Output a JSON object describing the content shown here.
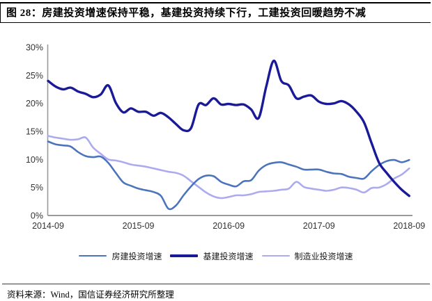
{
  "header": {
    "title": "图 28：房建投资增速保持平稳，基建投资持续下行，工建投资回暖趋势不减"
  },
  "footer": {
    "source": "资料来源：Wind，国信证券经济研究所整理"
  },
  "chart_data": {
    "type": "line",
    "title": "图 28：房建投资增速保持平稳，基建投资持续下行，工建投资回暖趋势不减",
    "xlabel": "",
    "ylabel": "",
    "ylim": [
      0,
      30
    ],
    "grid": false,
    "legend_position": "bottom",
    "axis_color": "#9a9a9a",
    "tick_text_color": "#333333",
    "x_start_label": "2014-09",
    "x_end_label": "2018-09",
    "points_per_series": 49,
    "x_ticks": [
      "2014-09",
      "2015-09",
      "2016-09",
      "2017-09",
      "2018-09"
    ],
    "x_tick_indices": [
      0,
      12,
      24,
      36,
      48
    ],
    "y_ticks": [
      "0%",
      "5%",
      "10%",
      "15%",
      "20%",
      "25%",
      "30%"
    ],
    "y_tick_values": [
      0,
      5,
      10,
      15,
      20,
      25,
      30
    ],
    "draw_order": [
      2,
      0,
      1
    ],
    "series": [
      {
        "name": "房建投资增速",
        "color": "#4C74BC",
        "width": 2.6,
        "values": [
          13.2,
          12.7,
          12.5,
          12.3,
          11.3,
          10.6,
          10.4,
          10.5,
          9.4,
          7.6,
          5.9,
          5.3,
          4.8,
          4.5,
          4.2,
          3.5,
          1.2,
          1.8,
          3.6,
          5.2,
          6.5,
          7.1,
          7.0,
          6.0,
          5.5,
          5.2,
          6.1,
          6.3,
          8.0,
          9.0,
          9.4,
          9.5,
          9.1,
          8.7,
          8.2,
          8.2,
          8.2,
          7.8,
          7.5,
          7.4,
          6.9,
          6.7,
          6.6,
          7.9,
          9.0,
          9.7,
          9.9,
          9.5,
          9.9
        ]
      },
      {
        "name": "基建投资增速",
        "color": "#1A1A99",
        "width": 3.4,
        "values": [
          24.0,
          23.0,
          22.5,
          22.8,
          22.1,
          21.7,
          21.1,
          21.6,
          23.2,
          20.1,
          18.4,
          19.1,
          18.5,
          18.5,
          17.8,
          18.3,
          17.5,
          16.3,
          15.2,
          15.6,
          19.8,
          19.7,
          20.9,
          19.8,
          19.9,
          19.7,
          19.8,
          18.9,
          17.4,
          23.0,
          27.6,
          24.0,
          23.2,
          20.9,
          21.2,
          21.4,
          20.3,
          19.9,
          20.0,
          20.4,
          19.8,
          18.5,
          16.6,
          12.9,
          9.4,
          7.6,
          6.0,
          4.6,
          3.5
        ]
      },
      {
        "name": "制造业投资增速",
        "color": "#ACABF0",
        "width": 2.6,
        "values": [
          14.2,
          13.9,
          13.7,
          13.5,
          13.6,
          13.9,
          12.1,
          11.0,
          10.0,
          9.8,
          9.5,
          9.1,
          8.9,
          8.7,
          8.4,
          8.1,
          7.8,
          7.6,
          7.1,
          6.1,
          5.1,
          4.1,
          3.4,
          3.1,
          3.3,
          3.6,
          3.6,
          3.8,
          4.2,
          4.3,
          4.4,
          4.6,
          4.8,
          6.0,
          5.1,
          4.8,
          4.6,
          4.4,
          4.6,
          5.0,
          4.9,
          4.6,
          4.1,
          4.9,
          5.0,
          5.6,
          6.6,
          7.3,
          8.4
        ]
      }
    ]
  }
}
